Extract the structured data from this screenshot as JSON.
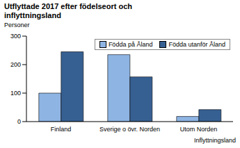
{
  "chart_data": {
    "type": "bar",
    "title": "Utflyttade 2017 efter födelseort och inflyttningsland",
    "subtitle": "Personer",
    "x_label": "Inflyttningsland",
    "categories": [
      "Finland",
      "Sverige o övr. Norden",
      "Utom Norden"
    ],
    "series": [
      {
        "name": "Födda på Åland",
        "color": "#8eb4e3",
        "values": [
          100,
          235,
          18
        ]
      },
      {
        "name": "Födda utanför Åland",
        "color": "#376092",
        "values": [
          245,
          157,
          42
        ]
      }
    ],
    "ylim": [
      0,
      300
    ],
    "yticks": [
      0,
      100,
      200,
      300
    ],
    "grid": false,
    "legend": "upper right"
  }
}
